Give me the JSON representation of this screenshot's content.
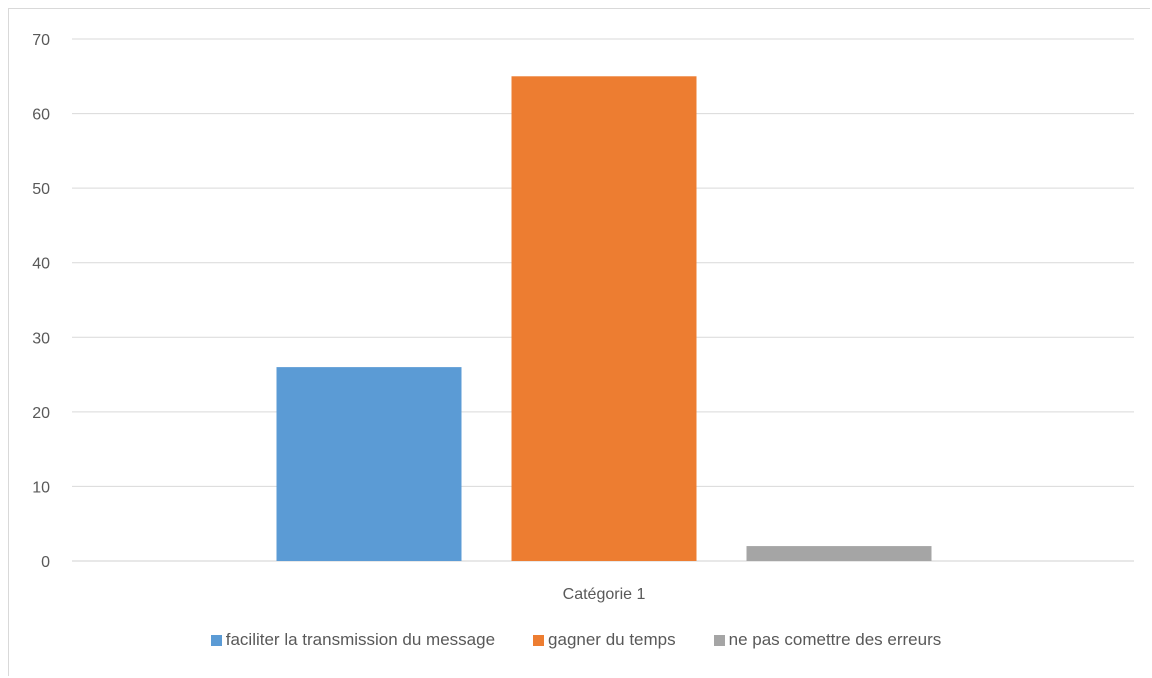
{
  "chart_data": {
    "type": "bar",
    "categories": [
      "Catégorie 1"
    ],
    "series": [
      {
        "name": "faciliter la transmission du message",
        "values": [
          26
        ],
        "color": "#5b9bd5"
      },
      {
        "name": "gagner du temps",
        "values": [
          65
        ],
        "color": "#ed7d31"
      },
      {
        "name": "ne pas comettre des erreurs",
        "values": [
          2
        ],
        "color": "#a5a5a5"
      }
    ],
    "ylim": [
      0,
      70
    ],
    "yticks": [
      "0",
      "10",
      "20",
      "30",
      "40",
      "50",
      "60",
      "70"
    ],
    "grid": true,
    "legend_position": "bottom",
    "title": "",
    "xlabel": "",
    "ylabel": ""
  }
}
